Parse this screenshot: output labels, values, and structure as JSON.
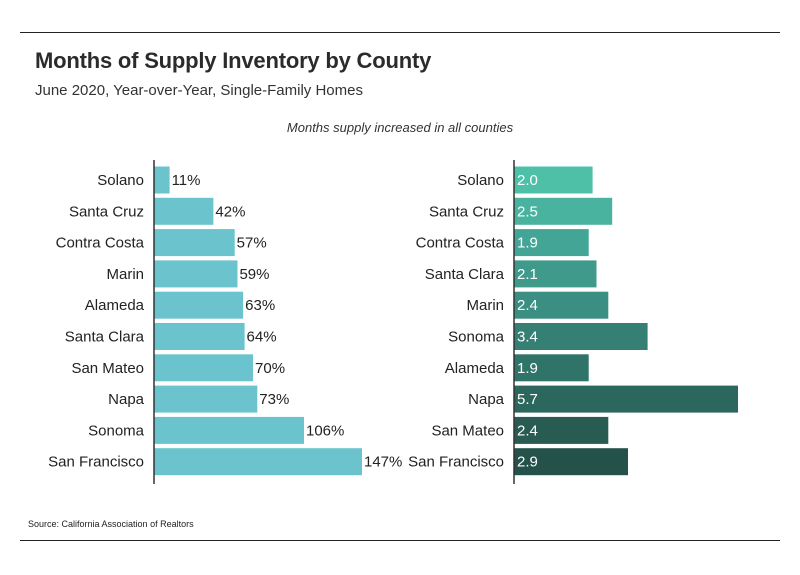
{
  "header": {
    "title": "Months of Supply Inventory by County",
    "subtitle": "June 2020, Year-over-Year, Single-Family Homes",
    "annotation": "Months supply increased in all counties"
  },
  "footer": {
    "source": "Source:  California Association of Realtors"
  },
  "chart_data": [
    {
      "type": "bar",
      "orientation": "horizontal",
      "categories": [
        "Solano",
        "Santa Cruz",
        "Contra Costa",
        "Marin",
        "Alameda",
        "Santa Clara",
        "San Mateo",
        "Napa",
        "Sonoma",
        "San Francisco"
      ],
      "values": [
        11,
        42,
        57,
        59,
        63,
        64,
        70,
        73,
        106,
        147
      ],
      "value_labels": [
        "11%",
        "42%",
        "57%",
        "59%",
        "63%",
        "64%",
        "70%",
        "73%",
        "106%",
        "147%"
      ],
      "color": "#6bc4cd",
      "xlim": [
        0,
        147
      ]
    },
    {
      "type": "bar",
      "orientation": "horizontal",
      "categories": [
        "Solano",
        "Santa Cruz",
        "Contra Costa",
        "Santa Clara",
        "Marin",
        "Sonoma",
        "Alameda",
        "Napa",
        "San Mateo",
        "San Francisco"
      ],
      "values": [
        2.0,
        2.5,
        1.9,
        2.1,
        2.4,
        3.4,
        1.9,
        5.7,
        2.4,
        2.9
      ],
      "value_labels": [
        "2.0",
        "2.5",
        "1.9",
        "2.1",
        "2.4",
        "3.4",
        "1.9",
        "5.7",
        "2.4",
        "2.9"
      ],
      "colors": [
        "#4fc0a8",
        "#4ab3a0",
        "#43a596",
        "#3f9a8c",
        "#3a8f82",
        "#357f74",
        "#307369",
        "#2b675d",
        "#285c53",
        "#24514a"
      ],
      "xlim": [
        0,
        5.7
      ]
    }
  ]
}
